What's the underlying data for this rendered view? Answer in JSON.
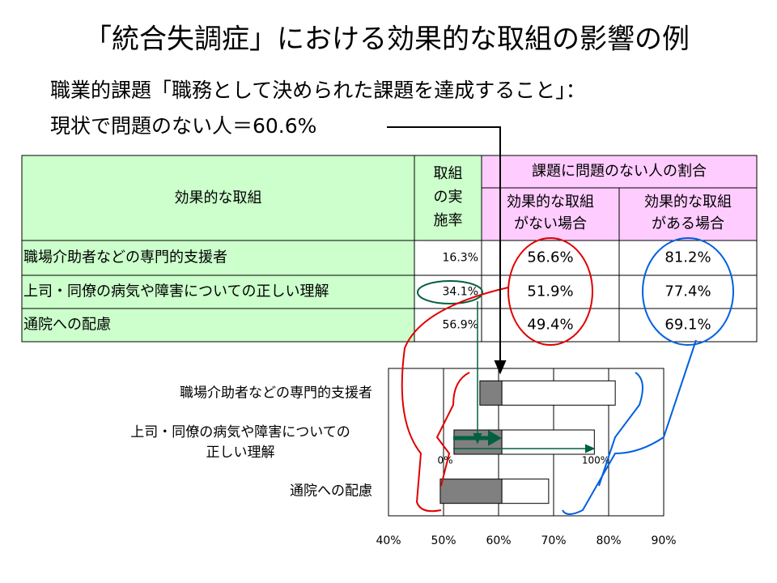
{
  "title": "「統合失調症」における効果的な取組の影響の例",
  "subtitle": [
    "職業的課題「職務として決められた課題を達成すること」：",
    "現状で問題のない人＝60.6%"
  ],
  "table": {
    "header": {
      "col0": "効果的な取組",
      "col1": [
        "取組",
        "の実",
        "施率"
      ],
      "group": "課題に問題のない人の割合",
      "col2": [
        "効果的な取組",
        "がない場合"
      ],
      "col3": [
        "効果的な取組",
        "がある場合"
      ]
    },
    "rows": [
      [
        "職場介助者などの専門的支援者",
        "16.3%",
        "56.6%",
        "81.2%"
      ],
      [
        "上司・同僚の病気や障害についての正しい理解",
        "34.1%",
        "51.9%",
        "77.4%"
      ],
      [
        "通院への配慮",
        "56.9%",
        "49.4%",
        "69.1%"
      ]
    ]
  },
  "chart_data": {
    "type": "floating-bar",
    "categories": [
      "職場介助者などの専門的支援者",
      "上司・同僚の病気や障害についての正しい理解",
      "通院への配慮"
    ],
    "baseline": 60.6,
    "series": [
      {
        "color": "#808080",
        "values": [
          56.6,
          51.9,
          49.4
        ]
      },
      {
        "color": "#ffffff",
        "values": [
          81.2,
          77.4,
          69.1
        ]
      }
    ],
    "xlim": [
      40,
      90
    ],
    "xticks": [
      {
        "value": 40,
        "label": "40%"
      },
      {
        "value": 50,
        "label": "50%"
      },
      {
        "value": 60,
        "label": "60%"
      },
      {
        "value": 70,
        "label": "70%"
      },
      {
        "value": 80,
        "label": "80%"
      },
      {
        "value": 90,
        "label": "90%"
      }
    ],
    "grid": true,
    "annotations": [
      "0%",
      "100%"
    ]
  }
}
